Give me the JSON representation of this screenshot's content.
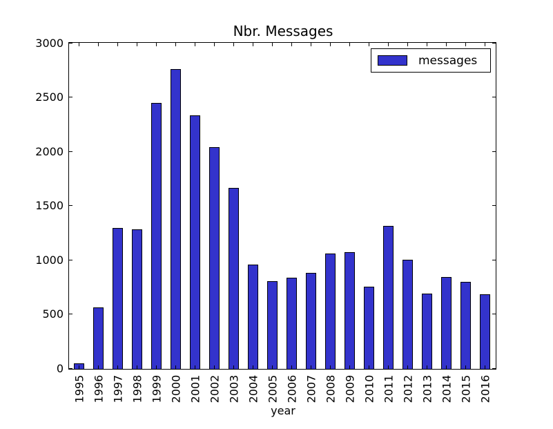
{
  "figure": {
    "background": "#ffffff",
    "text_color": "#000000",
    "spine_color": "#000000"
  },
  "chart_data": {
    "type": "bar",
    "title": "Nbr. Messages",
    "xlabel": "year",
    "ylabel": "",
    "categories": [
      "1995",
      "1996",
      "1997",
      "1998",
      "1999",
      "2000",
      "2001",
      "2002",
      "2003",
      "2004",
      "2005",
      "2006",
      "2007",
      "2008",
      "2009",
      "2010",
      "2011",
      "2012",
      "2013",
      "2014",
      "2015",
      "2016"
    ],
    "values": [
      50,
      570,
      1300,
      1285,
      2450,
      2765,
      2340,
      2045,
      1670,
      965,
      810,
      840,
      885,
      1065,
      1075,
      760,
      1320,
      1005,
      695,
      850,
      800,
      690
    ],
    "ylim": [
      0,
      3000
    ],
    "yticks": [
      0,
      500,
      1000,
      1500,
      2000,
      2500,
      3000
    ],
    "grid": false,
    "tick_direction": "in",
    "bar_color": "#3333cc",
    "bar_edge_color": "#000000",
    "legend": {
      "position": "upper right",
      "entries": [
        {
          "label": "messages",
          "color": "#3333cc"
        }
      ]
    }
  }
}
